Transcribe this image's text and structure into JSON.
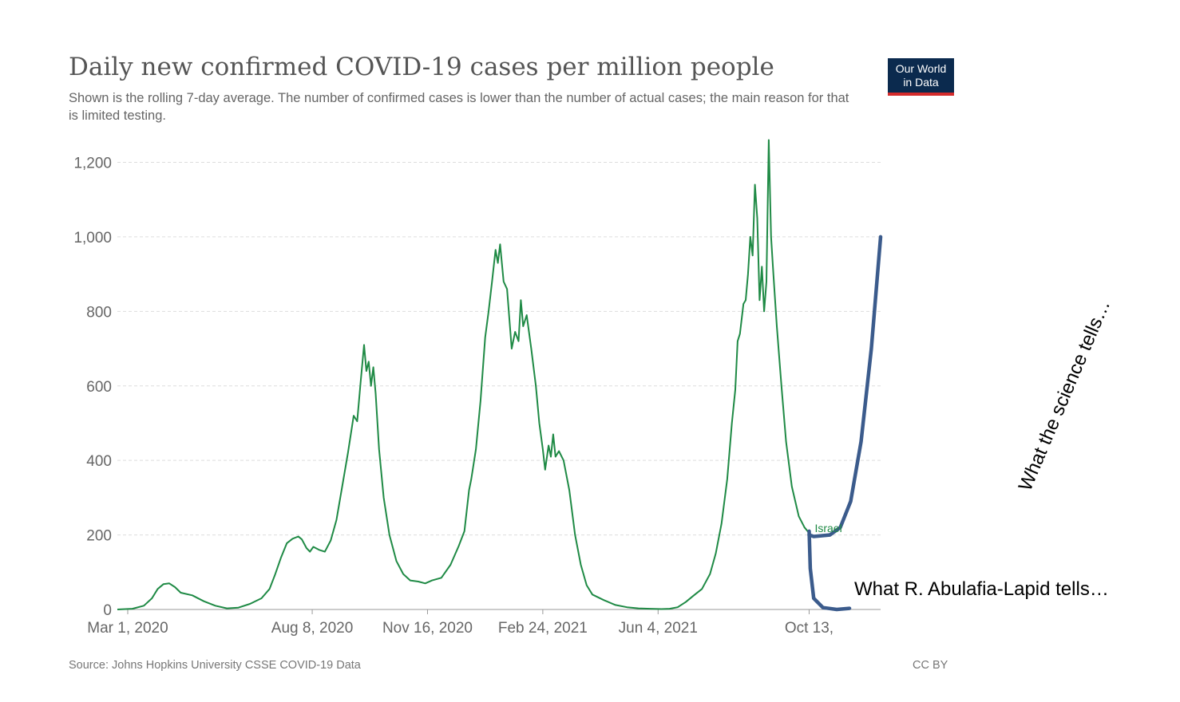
{
  "header": {
    "title": "Daily new confirmed COVID-19 cases per million people",
    "subtitle": "Shown is the rolling 7-day average. The number of confirmed cases is lower than the number of actual cases; the main reason for that is limited testing.",
    "logo_line1": "Our World",
    "logo_line2": "in Data"
  },
  "footer": {
    "source": "Source: Johns Hopkins University CSSE COVID-19 Data",
    "license": "CC BY"
  },
  "colors": {
    "series": "#1f8a45",
    "annotation": "#3b5b8c",
    "grid": "#dddddd",
    "logo_bg": "#0b2a4e",
    "logo_bar": "#d42b2b"
  },
  "chart_data": {
    "type": "line",
    "title": "Daily new confirmed COVID-19 cases per million people",
    "xlabel": "",
    "ylabel": "",
    "ylim": [
      0,
      1200
    ],
    "yticks": [
      {
        "value": 0,
        "label": "0"
      },
      {
        "value": 200,
        "label": "200"
      },
      {
        "value": 400,
        "label": "400"
      },
      {
        "value": 600,
        "label": "600"
      },
      {
        "value": 800,
        "label": "800"
      },
      {
        "value": 1000,
        "label": "1,000"
      },
      {
        "value": 1200,
        "label": "1,200"
      }
    ],
    "xlim": [
      "2020-02-21",
      "2021-12-14"
    ],
    "xticks": [
      {
        "date": "2020-03-01",
        "label": "Mar 1, 2020"
      },
      {
        "date": "2020-08-08",
        "label": "Aug 8, 2020"
      },
      {
        "date": "2020-11-16",
        "label": "Nov 16, 2020"
      },
      {
        "date": "2021-02-24",
        "label": "Feb 24, 2021"
      },
      {
        "date": "2021-06-04",
        "label": "Jun 4, 2021"
      },
      {
        "date": "2021-10-13",
        "label": "Oct 13,"
      }
    ],
    "grid": true,
    "series": [
      {
        "name": "Israel",
        "points": [
          [
            "2020-02-21",
            0
          ],
          [
            "2020-03-05",
            2
          ],
          [
            "2020-03-15",
            10
          ],
          [
            "2020-03-22",
            30
          ],
          [
            "2020-03-27",
            55
          ],
          [
            "2020-04-01",
            68
          ],
          [
            "2020-04-06",
            70
          ],
          [
            "2020-04-11",
            60
          ],
          [
            "2020-04-16",
            45
          ],
          [
            "2020-04-26",
            38
          ],
          [
            "2020-05-06",
            22
          ],
          [
            "2020-05-16",
            10
          ],
          [
            "2020-05-26",
            3
          ],
          [
            "2020-06-05",
            5
          ],
          [
            "2020-06-15",
            15
          ],
          [
            "2020-06-25",
            30
          ],
          [
            "2020-07-02",
            55
          ],
          [
            "2020-07-07",
            95
          ],
          [
            "2020-07-12",
            140
          ],
          [
            "2020-07-17",
            178
          ],
          [
            "2020-07-22",
            190
          ],
          [
            "2020-07-27",
            196
          ],
          [
            "2020-07-30",
            188
          ],
          [
            "2020-08-03",
            165
          ],
          [
            "2020-08-06",
            155
          ],
          [
            "2020-08-09",
            168
          ],
          [
            "2020-08-14",
            160
          ],
          [
            "2020-08-19",
            155
          ],
          [
            "2020-08-24",
            185
          ],
          [
            "2020-08-29",
            240
          ],
          [
            "2020-09-03",
            330
          ],
          [
            "2020-09-08",
            420
          ],
          [
            "2020-09-13",
            520
          ],
          [
            "2020-09-16",
            505
          ],
          [
            "2020-09-19",
            610
          ],
          [
            "2020-09-22",
            710
          ],
          [
            "2020-09-24",
            640
          ],
          [
            "2020-09-26",
            665
          ],
          [
            "2020-09-28",
            600
          ],
          [
            "2020-09-30",
            650
          ],
          [
            "2020-10-02",
            580
          ],
          [
            "2020-10-05",
            430
          ],
          [
            "2020-10-09",
            300
          ],
          [
            "2020-10-14",
            200
          ],
          [
            "2020-10-20",
            130
          ],
          [
            "2020-10-26",
            95
          ],
          [
            "2020-11-01",
            78
          ],
          [
            "2020-11-08",
            75
          ],
          [
            "2020-11-14",
            70
          ],
          [
            "2020-11-20",
            78
          ],
          [
            "2020-11-28",
            85
          ],
          [
            "2020-12-06",
            120
          ],
          [
            "2020-12-13",
            170
          ],
          [
            "2020-12-18",
            210
          ],
          [
            "2020-12-22",
            320
          ],
          [
            "2020-12-24",
            350
          ],
          [
            "2020-12-28",
            430
          ],
          [
            "2021-01-01",
            560
          ],
          [
            "2021-01-05",
            730
          ],
          [
            "2021-01-08",
            800
          ],
          [
            "2021-01-11",
            880
          ],
          [
            "2021-01-14",
            965
          ],
          [
            "2021-01-16",
            930
          ],
          [
            "2021-01-18",
            980
          ],
          [
            "2021-01-21",
            880
          ],
          [
            "2021-01-24",
            860
          ],
          [
            "2021-01-26",
            780
          ],
          [
            "2021-01-28",
            700
          ],
          [
            "2021-01-31",
            745
          ],
          [
            "2021-02-03",
            720
          ],
          [
            "2021-02-05",
            830
          ],
          [
            "2021-02-07",
            760
          ],
          [
            "2021-02-10",
            790
          ],
          [
            "2021-02-14",
            700
          ],
          [
            "2021-02-18",
            600
          ],
          [
            "2021-02-21",
            500
          ],
          [
            "2021-02-24",
            430
          ],
          [
            "2021-02-26",
            375
          ],
          [
            "2021-03-01",
            440
          ],
          [
            "2021-03-03",
            410
          ],
          [
            "2021-03-05",
            470
          ],
          [
            "2021-03-07",
            410
          ],
          [
            "2021-03-10",
            425
          ],
          [
            "2021-03-14",
            400
          ],
          [
            "2021-03-19",
            320
          ],
          [
            "2021-03-24",
            200
          ],
          [
            "2021-03-29",
            120
          ],
          [
            "2021-04-03",
            65
          ],
          [
            "2021-04-08",
            40
          ],
          [
            "2021-04-18",
            25
          ],
          [
            "2021-04-28",
            12
          ],
          [
            "2021-05-08",
            6
          ],
          [
            "2021-05-18",
            3
          ],
          [
            "2021-05-28",
            2
          ],
          [
            "2021-06-07",
            1
          ],
          [
            "2021-06-14",
            2
          ],
          [
            "2021-06-21",
            6
          ],
          [
            "2021-06-28",
            20
          ],
          [
            "2021-07-05",
            38
          ],
          [
            "2021-07-12",
            55
          ],
          [
            "2021-07-19",
            95
          ],
          [
            "2021-07-24",
            150
          ],
          [
            "2021-07-29",
            230
          ],
          [
            "2021-08-03",
            350
          ],
          [
            "2021-08-07",
            500
          ],
          [
            "2021-08-10",
            590
          ],
          [
            "2021-08-12",
            720
          ],
          [
            "2021-08-14",
            740
          ],
          [
            "2021-08-17",
            820
          ],
          [
            "2021-08-19",
            830
          ],
          [
            "2021-08-21",
            900
          ],
          [
            "2021-08-23",
            1000
          ],
          [
            "2021-08-25",
            950
          ],
          [
            "2021-08-27",
            1140
          ],
          [
            "2021-08-29",
            1050
          ],
          [
            "2021-08-31",
            830
          ],
          [
            "2021-09-02",
            920
          ],
          [
            "2021-09-04",
            800
          ],
          [
            "2021-09-06",
            880
          ],
          [
            "2021-09-08",
            1260
          ],
          [
            "2021-09-10",
            1000
          ],
          [
            "2021-09-12",
            900
          ],
          [
            "2021-09-15",
            760
          ],
          [
            "2021-09-19",
            600
          ],
          [
            "2021-09-23",
            450
          ],
          [
            "2021-09-28",
            330
          ],
          [
            "2021-10-04",
            250
          ],
          [
            "2021-10-09",
            220
          ],
          [
            "2021-10-13",
            205
          ]
        ]
      }
    ],
    "series_label": "Israel",
    "annotations": [
      {
        "text": "What the science tells…",
        "points": [
          [
            "2021-10-13",
            200
          ],
          [
            "2021-10-17",
            196
          ],
          [
            "2021-10-31",
            200
          ],
          [
            "2021-11-09",
            220
          ],
          [
            "2021-11-18",
            290
          ],
          [
            "2021-11-27",
            450
          ],
          [
            "2021-12-06",
            700
          ],
          [
            "2021-12-14",
            1000
          ]
        ]
      },
      {
        "text": "What R. Abulafia-Lapid tells…",
        "points": [
          [
            "2021-10-13",
            210
          ],
          [
            "2021-10-14",
            110
          ],
          [
            "2021-10-17",
            30
          ],
          [
            "2021-10-25",
            5
          ],
          [
            "2021-11-06",
            0
          ],
          [
            "2021-11-17",
            3
          ]
        ]
      }
    ]
  }
}
